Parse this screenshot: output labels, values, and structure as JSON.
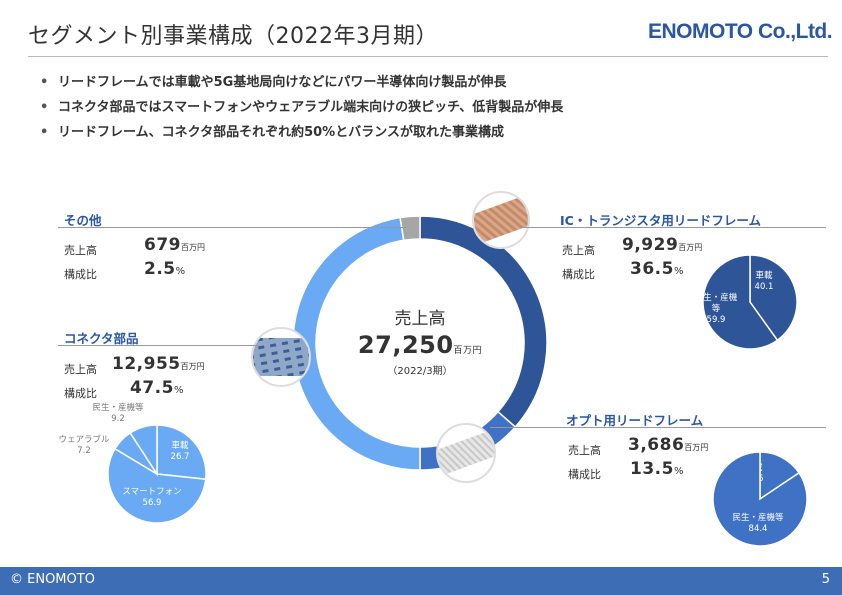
{
  "header": {
    "title": "セグメント別事業構成（2022年3月期）",
    "logo": "ENOMOTO Co.,Ltd."
  },
  "bullets": [
    "リードフレームでは車載や5G基地局向けなどにパワー半導体向け製品が伸長",
    "コネクタ部品ではスマートフォンやウェアラブル端末向けの狭ピッチ、低背製品が伸長",
    "リードフレーム、コネクタ部品それぞれ約50%とバランスが取れた事業構成"
  ],
  "labels": {
    "sales": "売上高",
    "ratio": "構成比",
    "unit": "百万円",
    "pct_sign": "%"
  },
  "center": {
    "label": "売上高",
    "value": "27,250",
    "unit": "百万円",
    "period": "（2022/3期）"
  },
  "segments": {
    "other": {
      "name": "その他",
      "sales": "679",
      "ratio": "2.5"
    },
    "ic": {
      "name": "IC・トランジスタ用リードフレーム",
      "sales": "9,929",
      "ratio": "36.5"
    },
    "connector": {
      "name": "コネクタ部品",
      "sales": "12,955",
      "ratio": "47.5"
    },
    "opto": {
      "name": "オプト用リードフレーム",
      "sales": "3,686",
      "ratio": "13.5"
    }
  },
  "colors": {
    "ic": "#2e5597",
    "opto": "#3f72c4",
    "connector": "#6aaaf5",
    "other": "#a6a6a6",
    "accent": "#2a56a4",
    "footer": "#3d6db5"
  },
  "chart_data": [
    {
      "type": "pie",
      "style": "donut",
      "title": "",
      "categories": [
        "IC・トランジスタ用リードフレーム",
        "オプト用リードフレーム",
        "コネクタ部品",
        "その他"
      ],
      "values": [
        36.5,
        13.5,
        47.5,
        2.5
      ]
    },
    {
      "type": "pie",
      "title": "",
      "categories": [
        "車載",
        "民生・産機等"
      ],
      "category_labels": [
        "車載",
        "民生・産機\n等"
      ],
      "values": [
        40.1,
        59.9
      ]
    },
    {
      "type": "pie",
      "title": "",
      "categories": [
        "車載",
        "民生・産機等"
      ],
      "values": [
        15.6,
        84.4
      ]
    },
    {
      "type": "pie",
      "title": "",
      "categories": [
        "車載",
        "スマートフォン",
        "ウェアラブル",
        "民生・産機等"
      ],
      "values": [
        26.7,
        56.9,
        7.2,
        9.2
      ]
    }
  ],
  "footer": {
    "copyright": "© ENOMOTO",
    "page": "5"
  }
}
